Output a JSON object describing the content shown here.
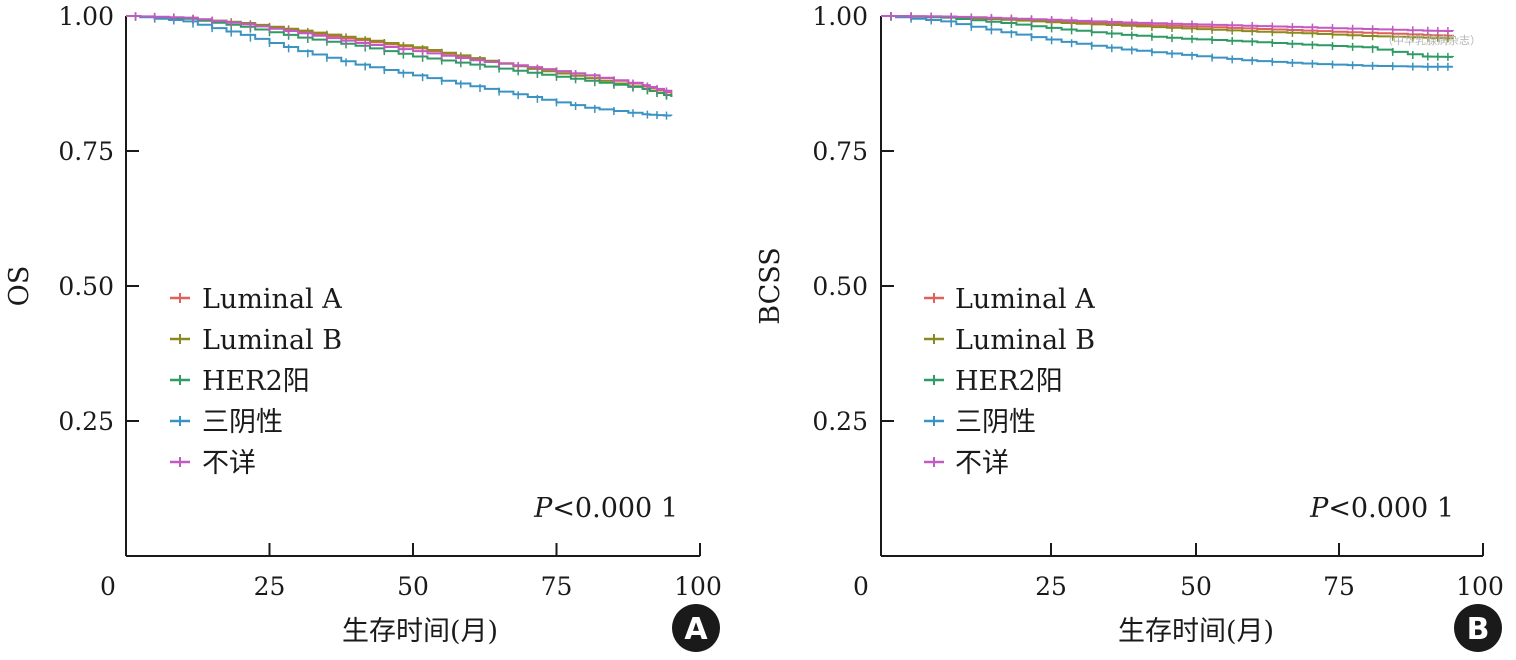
{
  "figure": {
    "watermark": "（中华乳腺病杂志）",
    "panels": [
      "A",
      "B"
    ]
  },
  "chart_data": [
    {
      "type": "line",
      "panel": "A",
      "badge": "A",
      "xlabel": "生存时间(月)",
      "ylabel": "OS",
      "xlim": [
        0,
        100
      ],
      "ylim": [
        0,
        1.0
      ],
      "xticks": [
        0,
        25,
        50,
        75,
        100
      ],
      "xtick_labels": [
        "0",
        "25",
        "50",
        "75",
        "100"
      ],
      "yticks": [
        0.25,
        0.5,
        0.75,
        1.0
      ],
      "ytick_labels": [
        "0.25",
        "0.50",
        "0.75",
        "1.00"
      ],
      "legend_position": "middle-left",
      "annotation_italic": "P",
      "annotation_rest": "<0.000 1",
      "series": [
        {
          "name": "Luminal A",
          "color": "#e0605a",
          "x": [
            0,
            10,
            20,
            30,
            40,
            50,
            60,
            70,
            80,
            90,
            95
          ],
          "y": [
            1.0,
            0.996,
            0.985,
            0.97,
            0.955,
            0.94,
            0.92,
            0.905,
            0.89,
            0.87,
            0.855
          ]
        },
        {
          "name": "Luminal B",
          "color": "#8a8a1e",
          "x": [
            0,
            10,
            20,
            30,
            40,
            50,
            60,
            70,
            80,
            90,
            95
          ],
          "y": [
            1.0,
            0.996,
            0.987,
            0.973,
            0.958,
            0.942,
            0.922,
            0.902,
            0.885,
            0.865,
            0.85
          ]
        },
        {
          "name": "HER2阳",
          "color": "#2e9a64",
          "x": [
            0,
            10,
            20,
            30,
            40,
            50,
            60,
            70,
            80,
            90,
            95
          ],
          "y": [
            1.0,
            0.995,
            0.98,
            0.96,
            0.945,
            0.925,
            0.91,
            0.895,
            0.88,
            0.865,
            0.85
          ]
        },
        {
          "name": "三阴性",
          "color": "#3a93c2",
          "x": [
            0,
            10,
            20,
            30,
            40,
            50,
            60,
            70,
            80,
            90,
            95
          ],
          "y": [
            1.0,
            0.99,
            0.965,
            0.935,
            0.91,
            0.89,
            0.87,
            0.85,
            0.83,
            0.818,
            0.815
          ]
        },
        {
          "name": "不详",
          "color": "#c15ac2",
          "x": [
            0,
            10,
            20,
            30,
            40,
            50,
            60,
            70,
            80,
            90,
            95
          ],
          "y": [
            1.0,
            0.997,
            0.985,
            0.968,
            0.95,
            0.935,
            0.918,
            0.905,
            0.89,
            0.872,
            0.858
          ]
        }
      ]
    },
    {
      "type": "line",
      "panel": "B",
      "badge": "B",
      "xlabel": "生存时间(月)",
      "ylabel": "BCSS",
      "xlim": [
        0,
        100
      ],
      "ylim": [
        0,
        1.0
      ],
      "xticks": [
        0,
        25,
        50,
        75,
        100
      ],
      "xtick_labels": [
        "0",
        "25",
        "50",
        "75",
        "100"
      ],
      "yticks": [
        0.25,
        0.5,
        0.75,
        1.0
      ],
      "ytick_labels": [
        "0.25",
        "0.50",
        "0.75",
        "1.00"
      ],
      "legend_position": "middle-left",
      "annotation_italic": "P",
      "annotation_rest": "<0.000 1",
      "series": [
        {
          "name": "Luminal A",
          "color": "#e0605a",
          "x": [
            0,
            10,
            20,
            30,
            40,
            50,
            60,
            70,
            80,
            90,
            95
          ],
          "y": [
            1.0,
            0.999,
            0.995,
            0.99,
            0.985,
            0.981,
            0.977,
            0.973,
            0.969,
            0.965,
            0.963
          ]
        },
        {
          "name": "Luminal B",
          "color": "#8a8a1e",
          "x": [
            0,
            10,
            20,
            30,
            40,
            50,
            60,
            70,
            80,
            90,
            95
          ],
          "y": [
            1.0,
            0.998,
            0.993,
            0.987,
            0.982,
            0.977,
            0.972,
            0.968,
            0.963,
            0.96,
            0.958
          ]
        },
        {
          "name": "HER2阳",
          "color": "#2e9a64",
          "x": [
            0,
            10,
            20,
            30,
            40,
            50,
            60,
            70,
            80,
            90,
            95
          ],
          "y": [
            1.0,
            0.997,
            0.987,
            0.975,
            0.965,
            0.958,
            0.953,
            0.947,
            0.942,
            0.925,
            0.924
          ]
        },
        {
          "name": "三阴性",
          "color": "#3a93c2",
          "x": [
            0,
            10,
            20,
            30,
            40,
            50,
            60,
            70,
            80,
            90,
            95
          ],
          "y": [
            1.0,
            0.99,
            0.97,
            0.952,
            0.938,
            0.928,
            0.918,
            0.912,
            0.908,
            0.906,
            0.906
          ]
        },
        {
          "name": "不详",
          "color": "#c15ac2",
          "x": [
            0,
            10,
            20,
            30,
            40,
            50,
            60,
            70,
            80,
            90,
            95
          ],
          "y": [
            1.0,
            0.999,
            0.996,
            0.992,
            0.988,
            0.985,
            0.982,
            0.979,
            0.976,
            0.973,
            0.972
          ]
        }
      ]
    }
  ]
}
